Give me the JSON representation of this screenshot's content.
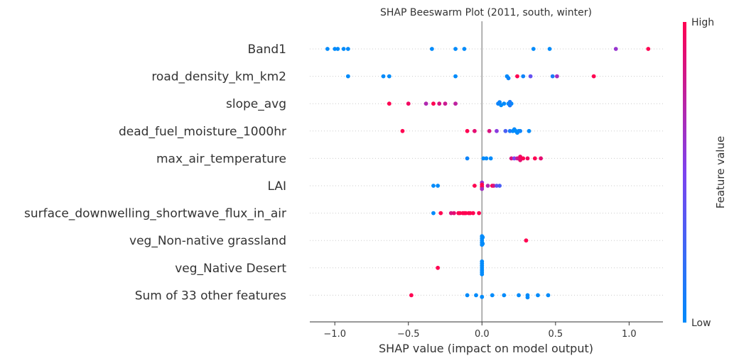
{
  "chart_data": {
    "type": "scatter",
    "title": "SHAP Beeswarm Plot (2011, south, winter)",
    "xlabel": "SHAP value (impact on model output)",
    "xlim": [
      -1.17,
      1.23
    ],
    "xticks": [
      -1.0,
      -0.5,
      0.0,
      0.5,
      1.0
    ],
    "xtick_labels": [
      "−1.0",
      "−0.5",
      "0.0",
      "0.5",
      "1.0"
    ],
    "colorbar": {
      "label": "Feature value",
      "high": "High",
      "low": "Low",
      "low_color": "#008bfb",
      "high_color": "#ff0051"
    },
    "grid": false,
    "features": [
      {
        "name": "Band1",
        "points": [
          [
            -1.05,
            0,
            0
          ],
          [
            -1.0,
            0,
            0
          ],
          [
            -0.98,
            0,
            0
          ],
          [
            -0.94,
            0,
            0
          ],
          [
            -0.91,
            0,
            0
          ],
          [
            -0.34,
            0,
            0
          ],
          [
            -0.18,
            0,
            0
          ],
          [
            -0.12,
            0,
            0
          ],
          [
            0.35,
            0,
            0
          ],
          [
            0.46,
            0,
            0
          ],
          [
            0.91,
            0,
            0.6
          ],
          [
            1.13,
            0,
            1
          ]
        ]
      },
      {
        "name": "road_density_km_km2",
        "points": [
          [
            -0.91,
            0,
            0
          ],
          [
            -0.67,
            0,
            0
          ],
          [
            -0.63,
            0,
            0
          ],
          [
            -0.18,
            0,
            0
          ],
          [
            0.17,
            0,
            0
          ],
          [
            0.18,
            0.9,
            0.05
          ],
          [
            0.24,
            0,
            1
          ],
          [
            0.28,
            0,
            0.05
          ],
          [
            0.33,
            0,
            0.4
          ],
          [
            0.48,
            0,
            0.1
          ],
          [
            0.51,
            0,
            0.65
          ],
          [
            0.76,
            0,
            1
          ]
        ]
      },
      {
        "name": "slope_avg",
        "points": [
          [
            -0.63,
            0,
            1
          ],
          [
            -0.5,
            0,
            0.95
          ],
          [
            -0.38,
            0,
            0.7
          ],
          [
            -0.33,
            0,
            1
          ],
          [
            -0.29,
            0,
            0.85
          ],
          [
            -0.25,
            0,
            0.8
          ],
          [
            -0.18,
            0,
            0.75
          ],
          [
            0.11,
            0,
            0.05
          ],
          [
            0.12,
            -0.7,
            0.05
          ],
          [
            0.13,
            0.7,
            0
          ],
          [
            0.15,
            0,
            0
          ],
          [
            0.18,
            0,
            0
          ],
          [
            0.2,
            0,
            0
          ],
          [
            0.19,
            0.8,
            0.1
          ],
          [
            0.19,
            -0.8,
            0.1
          ]
        ]
      },
      {
        "name": "dead_fuel_moisture_1000hr",
        "points": [
          [
            -0.54,
            0,
            1
          ],
          [
            -0.1,
            0,
            1
          ],
          [
            -0.05,
            0,
            0.9
          ],
          [
            0.05,
            0,
            0.85
          ],
          [
            0.1,
            0,
            0.55
          ],
          [
            0.16,
            0,
            0.3
          ],
          [
            0.19,
            0,
            0.1
          ],
          [
            0.21,
            0,
            0
          ],
          [
            0.22,
            -0.8,
            0
          ],
          [
            0.23,
            0,
            0
          ],
          [
            0.24,
            0.8,
            0
          ],
          [
            0.25,
            0,
            0
          ],
          [
            0.26,
            0,
            0.05
          ],
          [
            0.32,
            0,
            0
          ]
        ]
      },
      {
        "name": "max_air_temperature",
        "points": [
          [
            -0.1,
            0,
            0.05
          ],
          [
            0.01,
            0,
            0
          ],
          [
            0.03,
            0,
            0
          ],
          [
            0.06,
            0,
            0
          ],
          [
            0.2,
            0,
            0.85
          ],
          [
            0.22,
            0,
            0.5
          ],
          [
            0.24,
            0,
            0.8
          ],
          [
            0.26,
            0.8,
            0.9
          ],
          [
            0.26,
            -0.8,
            0.95
          ],
          [
            0.28,
            0,
            1
          ],
          [
            0.31,
            0,
            0.95
          ],
          [
            0.36,
            0,
            1
          ],
          [
            0.4,
            0,
            0.9
          ]
        ]
      },
      {
        "name": "LAI",
        "points": [
          [
            -0.33,
            0,
            0
          ],
          [
            -0.3,
            0,
            0
          ],
          [
            -0.05,
            0,
            1
          ],
          [
            0.0,
            -1.5,
            0.6
          ],
          [
            0.0,
            -0.5,
            1
          ],
          [
            0.0,
            0.5,
            1
          ],
          [
            0.0,
            1.5,
            0.65
          ],
          [
            0.04,
            0,
            0.7
          ],
          [
            0.07,
            0,
            1
          ],
          [
            0.08,
            0,
            0.85
          ],
          [
            0.1,
            0,
            0.4
          ],
          [
            0.12,
            0,
            0.3
          ]
        ]
      },
      {
        "name": "surface_downwelling_shortwave_flux_in_air",
        "points": [
          [
            -0.33,
            0,
            0
          ],
          [
            -0.28,
            0,
            1
          ],
          [
            -0.21,
            0,
            0.85
          ],
          [
            -0.19,
            0,
            0.9
          ],
          [
            -0.16,
            0,
            1
          ],
          [
            -0.15,
            0,
            1
          ],
          [
            -0.13,
            0,
            1
          ],
          [
            -0.12,
            0,
            1
          ],
          [
            -0.11,
            0,
            1
          ],
          [
            -0.09,
            0,
            1
          ],
          [
            -0.08,
            0,
            1
          ],
          [
            -0.06,
            0,
            1
          ],
          [
            -0.02,
            0,
            1
          ]
        ]
      },
      {
        "name": "veg_Non-native grassland ",
        "points": [
          [
            0.0,
            -2,
            0
          ],
          [
            0.0,
            -1,
            0
          ],
          [
            0.0,
            0,
            0
          ],
          [
            0.0,
            1,
            0
          ],
          [
            0.0,
            2,
            0
          ],
          [
            0.005,
            -1.5,
            0
          ],
          [
            0.005,
            1.5,
            0
          ],
          [
            0.3,
            0,
            1
          ]
        ]
      },
      {
        "name": "veg_Native Desert ",
        "points": [
          [
            -0.3,
            0,
            1
          ],
          [
            0.0,
            -3,
            0
          ],
          [
            0.0,
            -2,
            0
          ],
          [
            0.0,
            -1,
            0
          ],
          [
            0.0,
            0,
            0
          ],
          [
            0.0,
            1,
            0
          ],
          [
            0.0,
            2,
            0
          ],
          [
            0.0,
            3,
            0
          ]
        ]
      },
      {
        "name": "Sum of 33 other features",
        "points": [
          [
            -0.48,
            0,
            1
          ],
          [
            -0.1,
            0,
            0
          ],
          [
            -0.04,
            0,
            0
          ],
          [
            0.0,
            0.8,
            0
          ],
          [
            0.07,
            0,
            0
          ],
          [
            0.15,
            0,
            0
          ],
          [
            0.25,
            0,
            0
          ],
          [
            0.31,
            0,
            0
          ],
          [
            0.31,
            1,
            0
          ],
          [
            0.38,
            0,
            0
          ],
          [
            0.45,
            0,
            0
          ]
        ]
      }
    ]
  }
}
